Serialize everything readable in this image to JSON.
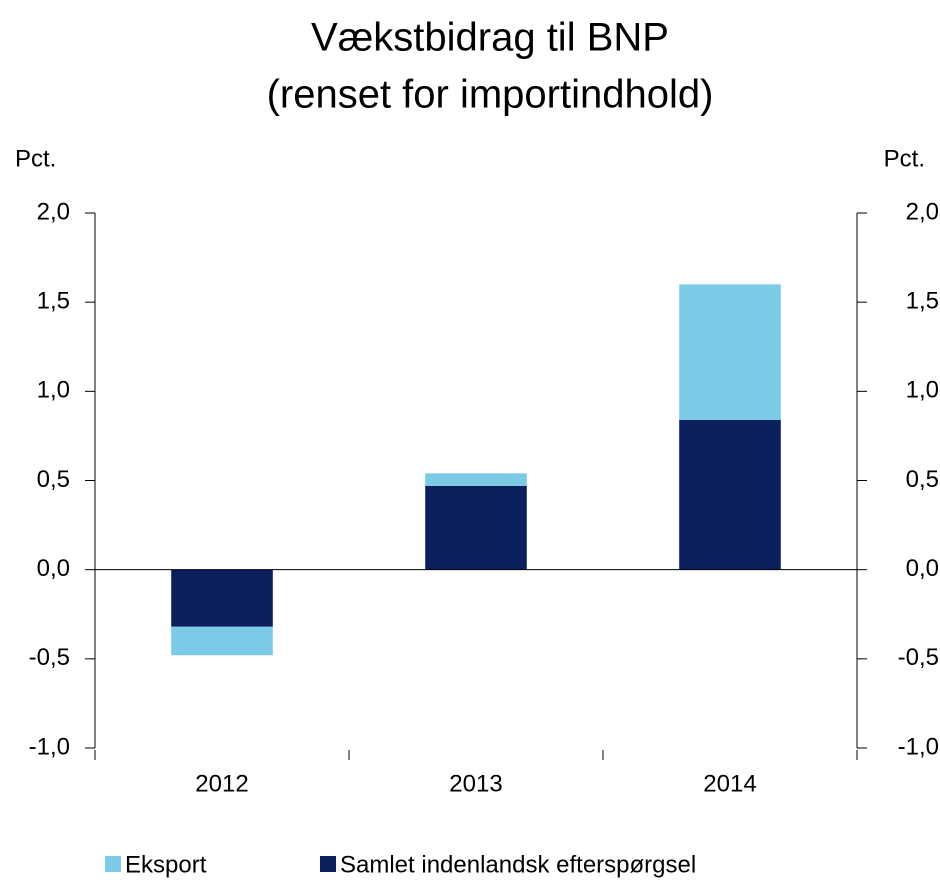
{
  "chart_data": {
    "type": "stacked_bar",
    "title": [
      "Vækstbidrag til BNP",
      "(renset for importindhold)"
    ],
    "ylabel": "Pct.",
    "y2label": "Pct.",
    "categories": [
      "2012",
      "2013",
      "2014"
    ],
    "series": [
      {
        "name": "Eksport",
        "color": "#7ccbe6",
        "values": [
          -0.16,
          0.07,
          0.76
        ]
      },
      {
        "name": "Samlet indenlandsk efterspørgsel",
        "color": "#0a1f5c",
        "values": [
          -0.32,
          0.47,
          0.84
        ]
      }
    ],
    "ylim": [
      -1,
      2
    ],
    "yticks": [
      {
        "value": -1,
        "label": "-1,0"
      },
      {
        "value": -0.5,
        "label": "-0,5"
      },
      {
        "value": 0,
        "label": "0,0"
      },
      {
        "value": 0.5,
        "label": "0,5"
      },
      {
        "value": 1,
        "label": "1,0"
      },
      {
        "value": 1.5,
        "label": "1,5"
      },
      {
        "value": 2,
        "label": "2,0"
      }
    ],
    "y2lim": [
      -1,
      2
    ],
    "y2ticks": [
      {
        "value": -1,
        "label": "-1,0"
      },
      {
        "value": -0.5,
        "label": "-0,5"
      },
      {
        "value": 0,
        "label": "0,0"
      },
      {
        "value": 0.5,
        "label": "0,5"
      },
      {
        "value": 1,
        "label": "1,0"
      },
      {
        "value": 1.5,
        "label": "1,5"
      },
      {
        "value": 2,
        "label": "2,0"
      }
    ],
    "grid": false,
    "legend": "bottom"
  }
}
